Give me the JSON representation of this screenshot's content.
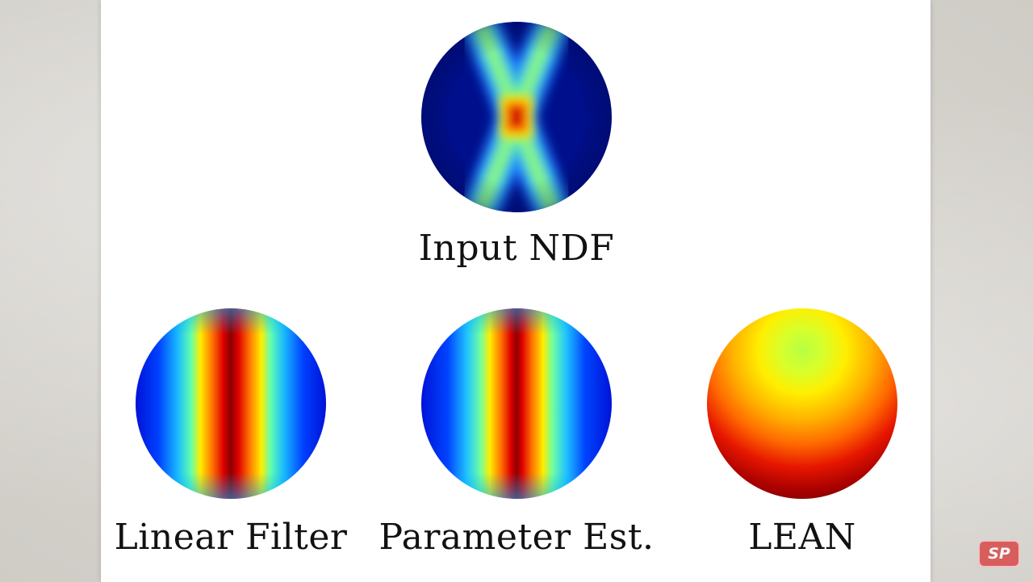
{
  "figures": [
    {
      "id": "input-ndf",
      "label": "Input NDF"
    },
    {
      "id": "linear-filter",
      "label": "Linear Filter"
    },
    {
      "id": "parameter-est",
      "label": "Parameter Est."
    },
    {
      "id": "lean",
      "label": "LEAN"
    }
  ],
  "colors": {
    "deep_blue": "#000f8c",
    "blue": "#0022ff",
    "cyan": "#22d2ff",
    "green": "#88ff66",
    "yellow": "#ffee00",
    "orange": "#ff7a00",
    "red": "#e00000",
    "dark_red": "#7a0000"
  },
  "watermark": {
    "text": "SP",
    "color": "#d94a4a"
  }
}
